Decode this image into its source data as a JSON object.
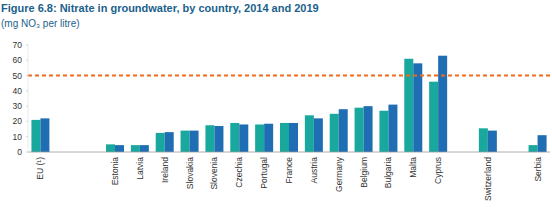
{
  "chart_data": {
    "type": "bar",
    "title": "Figure 6.8: Nitrate in groundwater, by country, 2014 and 2019",
    "subtitle": "(mg NO₃ per litre)",
    "categories": [
      "EU (¹)",
      null,
      null,
      "Estonia",
      "Latvia",
      "Ireland",
      "Slovakia",
      "Slovenia",
      "Czechia",
      "Portugal",
      "France",
      "Austria",
      "Germany",
      "Belgium",
      "Bulgaria",
      "Malta",
      "Cyprus",
      null,
      "Switzerland",
      null,
      "Serbia"
    ],
    "series": [
      {
        "color": "#19a89d",
        "values": [
          21,
          null,
          null,
          5,
          4.5,
          12.5,
          14,
          17.5,
          19,
          18,
          19,
          24,
          25,
          29,
          27,
          61,
          46,
          null,
          15.5,
          null,
          4.5
        ]
      },
      {
        "color": "#1f6db3",
        "values": [
          22,
          null,
          null,
          4.5,
          4.5,
          13,
          14,
          17,
          18,
          18.5,
          19,
          22,
          28,
          30,
          31,
          58,
          63,
          null,
          14,
          null,
          11
        ]
      }
    ],
    "threshold": 50,
    "ylim": [
      0,
      70
    ],
    "yticks": [
      0,
      10,
      20,
      30,
      40,
      50,
      60,
      70
    ],
    "grid": false
  }
}
